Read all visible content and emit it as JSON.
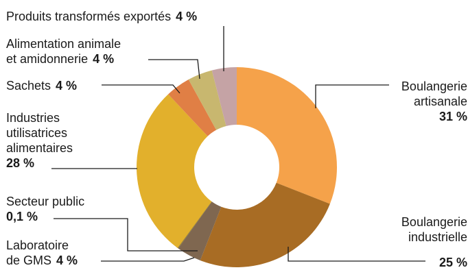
{
  "chart_data": {
    "type": "pie",
    "donut": true,
    "title": "",
    "legend": "none",
    "slices": [
      {
        "name_lines": [
          "Boulangerie",
          "artisanale"
        ],
        "value_label": "31 %",
        "value": 31,
        "color": "#F5A24A"
      },
      {
        "name_lines": [
          "Boulangerie",
          "industrielle"
        ],
        "value_label": "25 %",
        "value": 25,
        "color": "#A86C24"
      },
      {
        "name_lines": [
          "Laboratoire",
          "de GMS"
        ],
        "value_label": "4 %",
        "value": 4,
        "color": "#7F6750"
      },
      {
        "name_lines": [
          "Secteur public"
        ],
        "value_label": "0,1 %",
        "value": 0.1,
        "color": "#8C7A3A"
      },
      {
        "name_lines": [
          "Industries",
          "utilisatrices",
          "alimentaires"
        ],
        "value_label": "28 %",
        "value": 28,
        "color": "#E2B02C"
      },
      {
        "name_lines": [
          "Sachets"
        ],
        "value_label": "4 %",
        "value": 4,
        "color": "#E07F45"
      },
      {
        "name_lines": [
          "Alimentation animale",
          "et amidonnerie"
        ],
        "value_label": "4 %",
        "value": 4,
        "color": "#C8B76F"
      },
      {
        "name_lines": [
          "Produits transformés exportés"
        ],
        "value_label": "4 %",
        "value": 4,
        "color": "#C5A3A5"
      }
    ]
  }
}
